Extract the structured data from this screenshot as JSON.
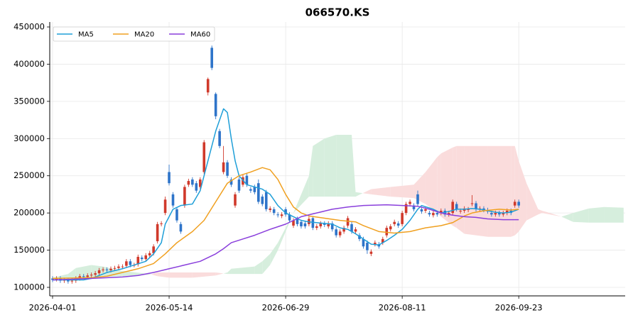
{
  "chart_data": {
    "type": "candlestick",
    "title": "066570.KS",
    "xlim": [
      -0.73,
      147.4
    ],
    "xticks": [
      {
        "value": 0,
        "label": "2026-04-01"
      },
      {
        "value": 30,
        "label": "2026-05-14"
      },
      {
        "value": 60,
        "label": "2026-06-29"
      },
      {
        "value": 90,
        "label": "2026-08-11"
      },
      {
        "value": 120,
        "label": "2026-09-23"
      }
    ],
    "ylim": [
      88556,
      456676
    ],
    "yticks": [
      100000,
      150000,
      200000,
      250000,
      300000,
      350000,
      400000,
      450000
    ],
    "grid": true,
    "legend_position": "upper left",
    "up_color": "#d0392b",
    "down_color": "#2e74c9",
    "candles": {
      "x": [
        0,
        1,
        2,
        3,
        4,
        5,
        6,
        7,
        8,
        9,
        10,
        11,
        12,
        13,
        14,
        15,
        16,
        17,
        18,
        19,
        20,
        21,
        22,
        23,
        24,
        25,
        26,
        27,
        28,
        29,
        30,
        31,
        32,
        33,
        34,
        35,
        36,
        37,
        38,
        39,
        40,
        41,
        42,
        43,
        44,
        45,
        46,
        47,
        48,
        49,
        50,
        51,
        52,
        53,
        54,
        55,
        56,
        57,
        58,
        59,
        60,
        61,
        62,
        63,
        64,
        65,
        66,
        67,
        68,
        69,
        70,
        71,
        72,
        73,
        74,
        75,
        76,
        77,
        78,
        79,
        80,
        81,
        82,
        83,
        84,
        85,
        86,
        87,
        88,
        89,
        90,
        91,
        92,
        93,
        94,
        95,
        96,
        97,
        98,
        99,
        100,
        101,
        102,
        103,
        104,
        105,
        106,
        107,
        108,
        109,
        110,
        111,
        112,
        113,
        114,
        115,
        116,
        117,
        118,
        119,
        120
      ],
      "open": [
        112000,
        111000,
        112000,
        109000,
        110000,
        108000,
        109000,
        112000,
        115000,
        114000,
        116000,
        117000,
        119000,
        123000,
        124000,
        123000,
        125000,
        126000,
        128000,
        129000,
        135000,
        130000,
        131000,
        140000,
        138000,
        143000,
        146000,
        162000,
        185000,
        200000,
        255000,
        225000,
        205000,
        185000,
        210000,
        238000,
        245000,
        240000,
        235000,
        255000,
        362000,
        422000,
        360000,
        310000,
        255000,
        268000,
        245000,
        210000,
        245000,
        238000,
        250000,
        232000,
        235000,
        240000,
        222000,
        228000,
        204000,
        205000,
        198000,
        196000,
        205000,
        198000,
        183000,
        192000,
        188000,
        186000,
        185000,
        193000,
        180000,
        182000,
        186000,
        182000,
        186000,
        178000,
        170000,
        175000,
        183000,
        185000,
        175000,
        170000,
        165000,
        160000,
        145000,
        158000,
        158000,
        160000,
        170000,
        178000,
        185000,
        186000,
        185000,
        200000,
        212000,
        210000,
        225000,
        205000,
        203000,
        200000,
        197000,
        200000,
        200000,
        203000,
        198000,
        200000,
        212000,
        202000,
        203000,
        204000,
        212000,
        213000,
        205000,
        206000,
        204000,
        200000,
        198000,
        200000,
        198000,
        200000,
        203000,
        210000,
        215000
      ],
      "high": [
        115000,
        115000,
        115000,
        113000,
        113000,
        112000,
        115000,
        118000,
        118000,
        119000,
        120000,
        122000,
        126000,
        127000,
        127000,
        128000,
        129000,
        131000,
        131000,
        138000,
        138000,
        133000,
        144000,
        143000,
        146000,
        149000,
        158000,
        188000,
        189000,
        222000,
        265000,
        228000,
        208000,
        188000,
        238000,
        246000,
        248000,
        243000,
        248000,
        298000,
        382000,
        425000,
        362000,
        313000,
        290000,
        271000,
        248000,
        228000,
        248000,
        251000,
        253000,
        235000,
        238000,
        245000,
        225000,
        231000,
        209000,
        208000,
        201000,
        201000,
        208000,
        201000,
        193000,
        195000,
        191000,
        189000,
        195000,
        196000,
        185000,
        189000,
        189000,
        189000,
        189000,
        181000,
        178000,
        183000,
        196000,
        188000,
        181000,
        173000,
        168000,
        163000,
        151000,
        163000,
        161000,
        168000,
        183000,
        185000,
        191000,
        189000,
        203000,
        215000,
        218000,
        213000,
        230000,
        208000,
        208000,
        203000,
        203000,
        203000,
        206000,
        206000,
        203000,
        218000,
        215000,
        206000,
        209000,
        208000,
        224000,
        216000,
        209000,
        209000,
        207000,
        203000,
        203000,
        203000,
        203000,
        206000,
        206000,
        218000,
        218000
      ],
      "low": [
        107000,
        108000,
        106000,
        106000,
        105000,
        105000,
        106000,
        109000,
        111000,
        111000,
        113000,
        114000,
        116000,
        120000,
        120000,
        120000,
        122000,
        123000,
        125000,
        126000,
        127000,
        127000,
        128000,
        135000,
        135000,
        140000,
        143000,
        159000,
        182000,
        197000,
        237000,
        207000,
        187000,
        172000,
        207000,
        235000,
        235000,
        227000,
        232000,
        252000,
        358000,
        392000,
        326000,
        287000,
        252000,
        247000,
        235000,
        207000,
        227000,
        235000,
        235000,
        227000,
        225000,
        212000,
        209000,
        202000,
        201000,
        197000,
        194000,
        193000,
        195000,
        187000,
        180000,
        182000,
        179000,
        179000,
        182000,
        177000,
        177000,
        179000,
        181000,
        179000,
        175000,
        167000,
        167000,
        172000,
        180000,
        172000,
        172000,
        162000,
        152000,
        145000,
        142000,
        155000,
        152000,
        157000,
        167000,
        175000,
        182000,
        180000,
        182000,
        197000,
        209000,
        202000,
        209000,
        199000,
        200000,
        195000,
        194000,
        195000,
        197000,
        195000,
        195000,
        197000,
        202000,
        199000,
        200000,
        201000,
        209000,
        202000,
        202000,
        201000,
        199000,
        195000,
        195000,
        195000,
        195000,
        197000,
        197000,
        207000,
        207000
      ],
      "close": [
        110000,
        112000,
        109000,
        110000,
        108000,
        109000,
        112000,
        115000,
        114000,
        116000,
        117000,
        119000,
        123000,
        124000,
        123000,
        125000,
        126000,
        128000,
        128000,
        135000,
        130000,
        130000,
        141000,
        138000,
        143000,
        146000,
        155000,
        185000,
        186000,
        218000,
        240000,
        210000,
        190000,
        175000,
        235000,
        243000,
        238000,
        230000,
        245000,
        295000,
        380000,
        395000,
        330000,
        290000,
        268000,
        250000,
        238000,
        225000,
        230000,
        248000,
        238000,
        230000,
        228000,
        215000,
        212000,
        205000,
        206000,
        200000,
        197000,
        198000,
        198000,
        190000,
        190000,
        185000,
        182000,
        182000,
        192000,
        180000,
        182000,
        186000,
        184000,
        186000,
        178000,
        170000,
        175000,
        180000,
        193000,
        175000,
        178000,
        165000,
        155000,
        150000,
        148000,
        160000,
        155000,
        165000,
        180000,
        182000,
        188000,
        183000,
        200000,
        212000,
        215000,
        205000,
        212000,
        202000,
        205000,
        198000,
        200000,
        198000,
        203000,
        198000,
        200000,
        215000,
        205000,
        203000,
        206000,
        205000,
        213000,
        205000,
        206000,
        204000,
        202000,
        198000,
        200000,
        198000,
        200000,
        203000,
        200000,
        215000,
        210000
      ]
    },
    "cloud": {
      "up_color": "#d6eedd",
      "down_color": "#fadcdc",
      "x": [
        0,
        4,
        6,
        10,
        13,
        18,
        25,
        27,
        30,
        36,
        42,
        45,
        46,
        52,
        54,
        56,
        58,
        62,
        66,
        67,
        70,
        73,
        77,
        78,
        82,
        87,
        93,
        96,
        99,
        100,
        103,
        104,
        106,
        112,
        118,
        119,
        120,
        122,
        125,
        126,
        128,
        131,
        134,
        138,
        142,
        147
      ],
      "span_a": [
        113000,
        118000,
        126000,
        130000,
        128000,
        122000,
        118000,
        115000,
        113000,
        113000,
        116000,
        120000,
        125000,
        128000,
        135000,
        145000,
        160000,
        200000,
        250000,
        290000,
        300000,
        305000,
        305000,
        228000,
        225000,
        222000,
        220000,
        212000,
        200000,
        195000,
        183000,
        180000,
        172000,
        168000,
        168000,
        170000,
        175000,
        190000,
        198000,
        200000,
        198000,
        195000,
        200000,
        206000,
        208000,
        207000
      ],
      "span_b": [
        111000,
        112000,
        112000,
        113000,
        114000,
        115000,
        117000,
        120000,
        120000,
        120000,
        120000,
        118000,
        118000,
        118000,
        118000,
        130000,
        150000,
        200000,
        222000,
        222000,
        222000,
        222000,
        222000,
        222000,
        232000,
        235000,
        238000,
        255000,
        275000,
        280000,
        288000,
        290000,
        290000,
        290000,
        290000,
        290000,
        270000,
        240000,
        205000,
        203000,
        200000,
        195000,
        188000,
        187000,
        187000,
        187000
      ]
    },
    "series": [
      {
        "name": "MA5",
        "color": "#1f9fd8",
        "x": [
          0,
          8,
          10,
          14,
          18,
          21,
          24,
          26,
          28,
          29,
          31,
          33,
          36,
          38,
          40,
          42,
          44,
          45,
          46,
          47,
          48,
          50,
          52,
          54,
          56,
          58,
          60,
          62,
          64,
          66,
          70,
          72,
          74,
          76,
          78,
          80,
          82,
          84,
          86,
          88,
          90,
          92,
          94,
          95,
          98,
          100,
          102,
          104,
          106,
          108,
          110,
          112,
          114,
          116,
          118,
          120
        ],
        "values": [
          110000,
          110000,
          112000,
          120000,
          125000,
          130000,
          135000,
          145000,
          160000,
          185000,
          205000,
          210000,
          212000,
          230000,
          270000,
          310000,
          340000,
          335000,
          300000,
          270000,
          250000,
          238000,
          235000,
          232000,
          225000,
          210000,
          200000,
          195000,
          190000,
          188000,
          186000,
          185000,
          180000,
          178000,
          172000,
          165000,
          158000,
          157000,
          163000,
          170000,
          178000,
          190000,
          205000,
          210000,
          205000,
          200000,
          202000,
          205000,
          205000,
          206000,
          205000,
          203000,
          201000,
          200000,
          201000,
          205000
        ]
      },
      {
        "name": "MA20",
        "color": "#f0a020",
        "x": [
          0,
          10,
          14,
          18,
          22,
          26,
          29,
          32,
          36,
          39,
          42,
          45,
          48,
          51,
          54,
          56,
          58,
          60,
          62,
          64,
          66,
          70,
          74,
          78,
          80,
          84,
          88,
          92,
          96,
          100,
          103,
          106,
          108,
          111,
          115,
          118,
          120
        ],
        "values": [
          112000,
          113000,
          115000,
          120000,
          125000,
          132000,
          145000,
          160000,
          175000,
          190000,
          215000,
          240000,
          250000,
          255000,
          261000,
          258000,
          245000,
          225000,
          208000,
          200000,
          196000,
          193000,
          190000,
          188000,
          183000,
          175000,
          173000,
          175000,
          180000,
          183000,
          187000,
          196000,
          200000,
          203000,
          205000,
          204000,
          205000
        ]
      },
      {
        "name": "MA60",
        "color": "#8a3fdc",
        "x": [
          0,
          10,
          18,
          22,
          26,
          30,
          34,
          38,
          40,
          42,
          44,
          46,
          49,
          52,
          56,
          60,
          62,
          64,
          68,
          72,
          76,
          80,
          86,
          90,
          94,
          97,
          100,
          103,
          106,
          109,
          112,
          116,
          120
        ],
        "values": [
          110000,
          112000,
          114000,
          116000,
          120000,
          125000,
          130000,
          135000,
          140000,
          145000,
          152000,
          160000,
          165000,
          170000,
          178000,
          185000,
          190000,
          195000,
          200000,
          205000,
          208000,
          210000,
          211000,
          210000,
          209000,
          205000,
          200000,
          197000,
          195000,
          194000,
          192000,
          191000,
          191000
        ]
      }
    ]
  }
}
